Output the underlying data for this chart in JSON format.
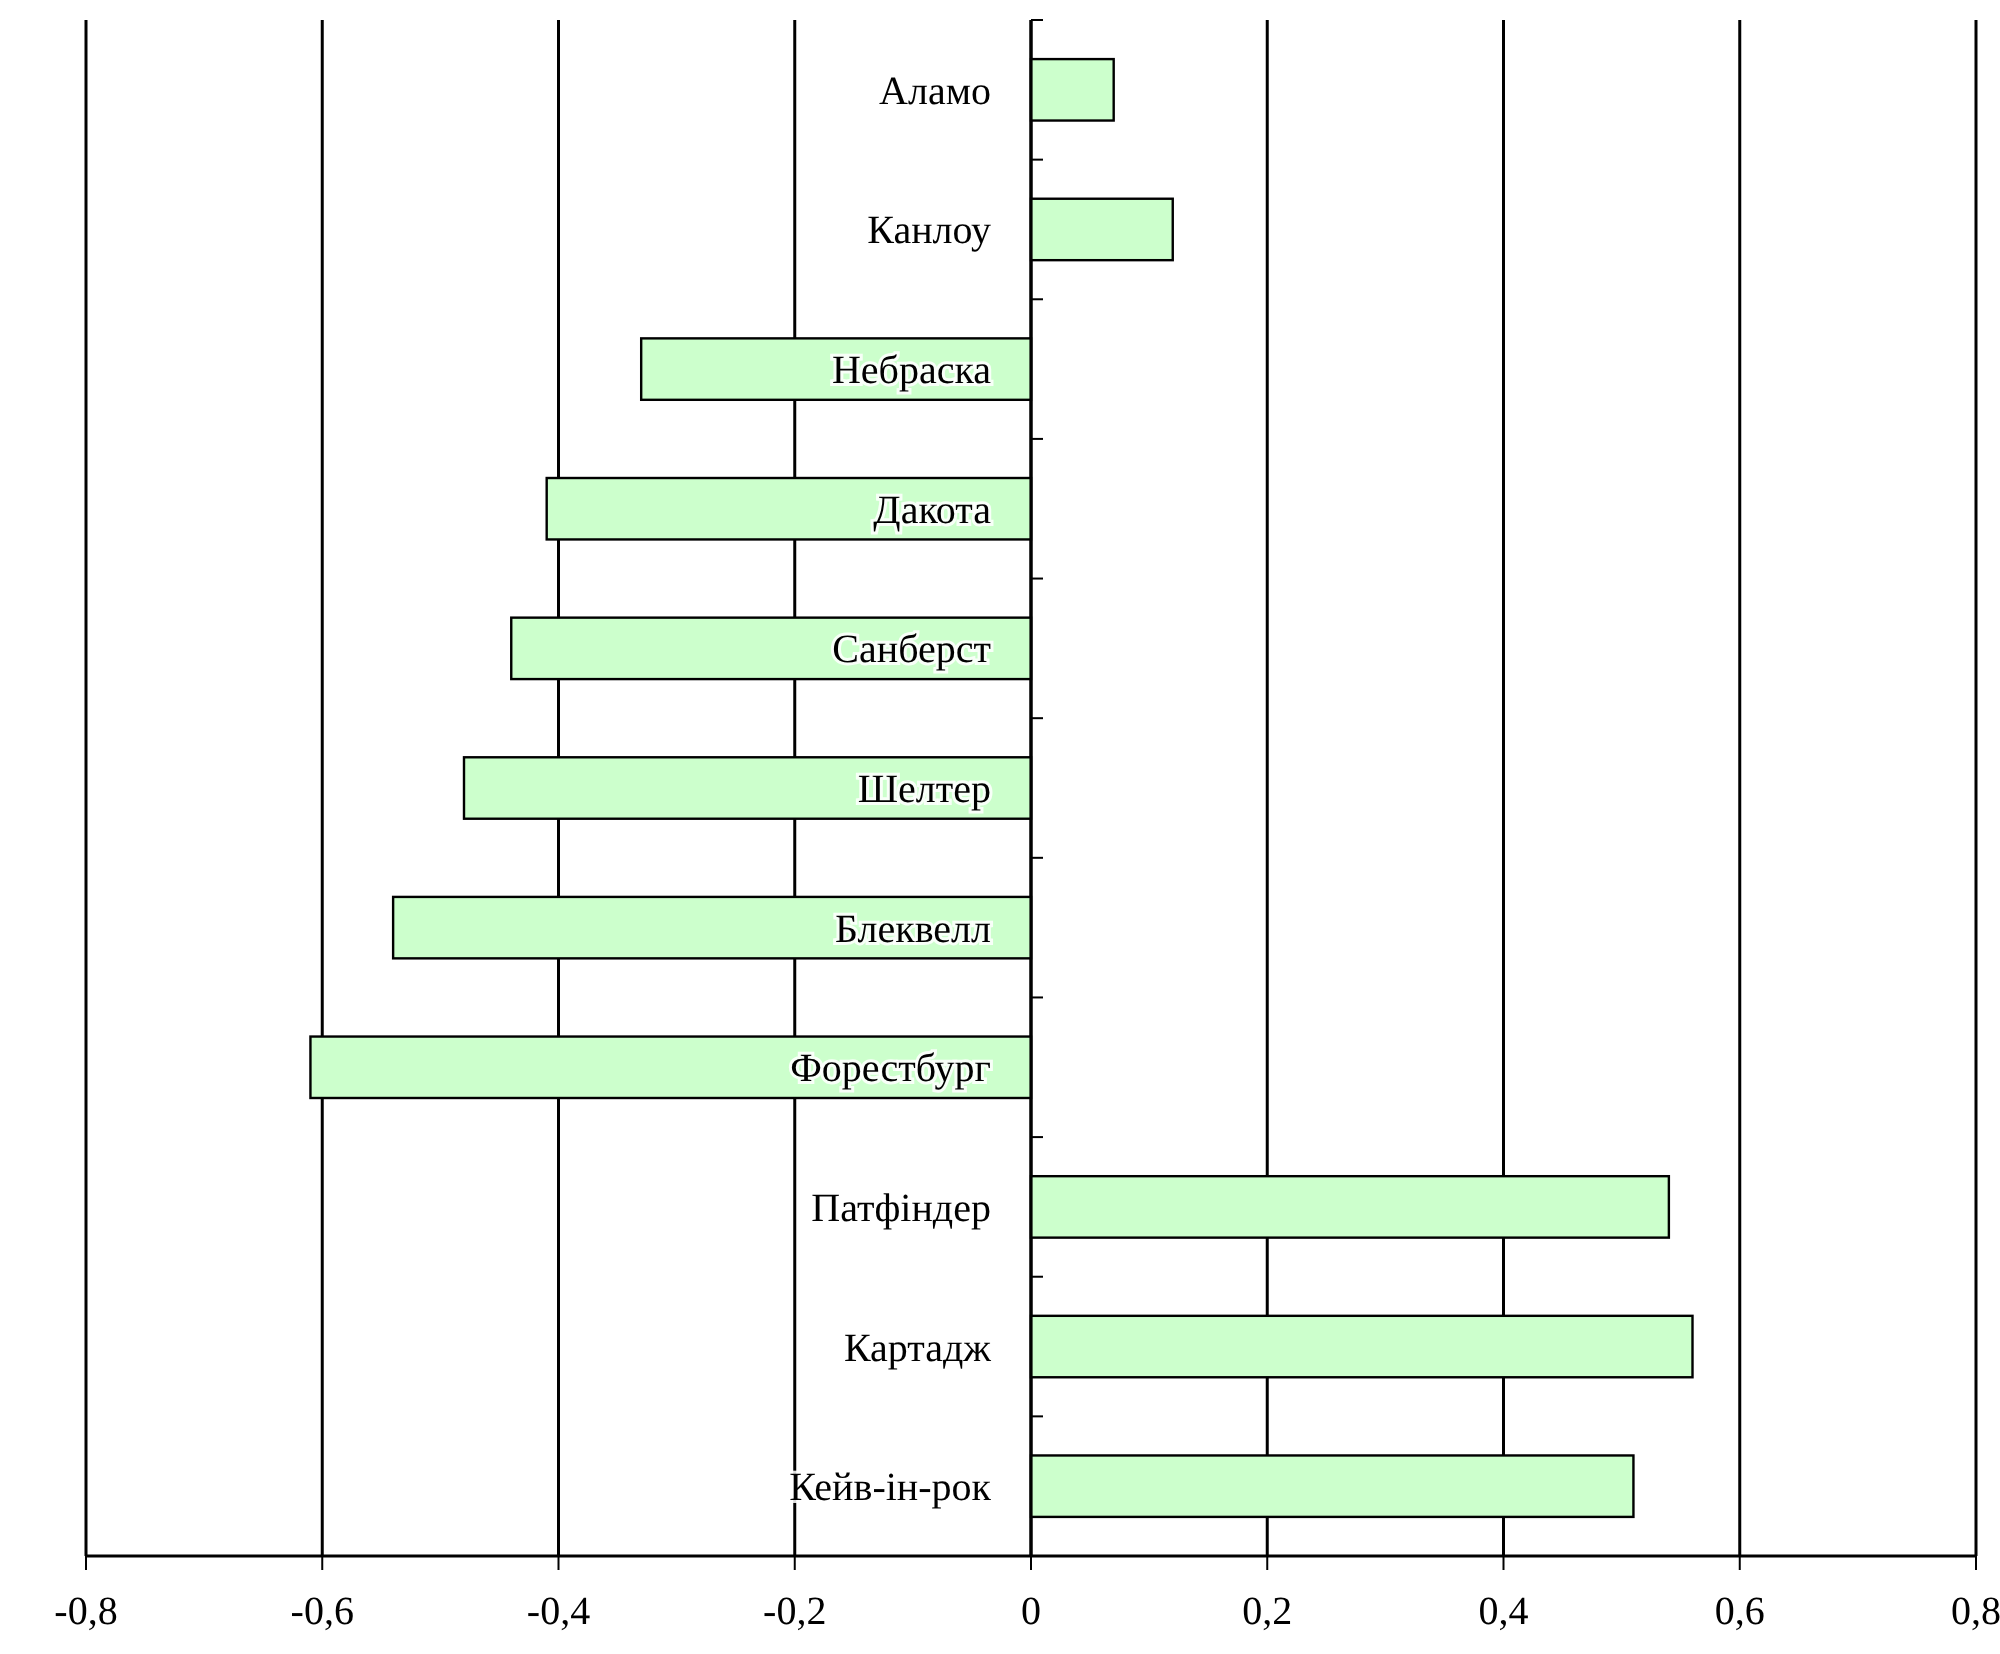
{
  "chart_data": {
    "type": "bar",
    "orientation": "horizontal",
    "categories": [
      "Аламо",
      "Канлоу",
      "Небраска",
      "Дакота",
      "Санберст",
      "Шелтер",
      "Блеквелл",
      "Форестбург",
      "Патфіндер",
      "Картадж",
      "Кейв-ін-рок"
    ],
    "values": [
      0.07,
      0.12,
      -0.33,
      -0.41,
      -0.44,
      -0.48,
      -0.54,
      -0.61,
      0.54,
      0.56,
      0.51
    ],
    "color": "#ccffcc",
    "xlim": [
      -0.8,
      0.8
    ],
    "xticks": [
      {
        "value": -0.8,
        "label": "-0,8"
      },
      {
        "value": -0.6,
        "label": "-0,6"
      },
      {
        "value": -0.4,
        "label": "-0,4"
      },
      {
        "value": -0.2,
        "label": "-0,2"
      },
      0,
      {
        "value": 0.2,
        "label": "0,2"
      },
      {
        "value": 0.4,
        "label": "0,4"
      },
      {
        "value": 0.6,
        "label": "0,6"
      },
      {
        "value": 0.8,
        "label": "0,8"
      }
    ],
    "grid": "x"
  }
}
